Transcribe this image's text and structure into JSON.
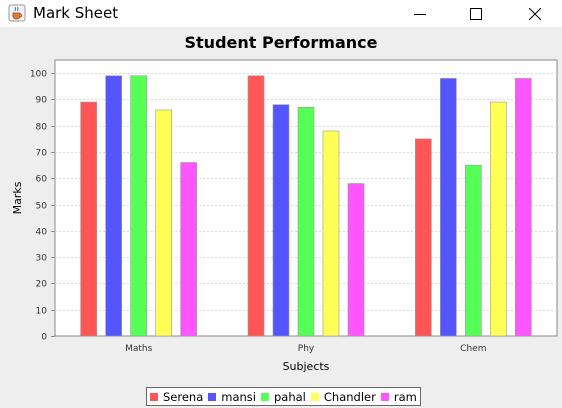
{
  "window": {
    "title": "Mark Sheet",
    "icons": {
      "app": "java-cup-icon",
      "minimize": "minimize-icon",
      "maximize": "maximize-icon",
      "close": "close-icon"
    }
  },
  "chart_data": {
    "type": "bar",
    "title": "Student Performance",
    "xlabel": "Subjects",
    "ylabel": "Marks",
    "categories": [
      "Maths",
      "Phy",
      "Chem"
    ],
    "ylim": [
      0,
      105
    ],
    "yticks": [
      0,
      10,
      20,
      30,
      40,
      50,
      60,
      70,
      80,
      90,
      100
    ],
    "grid": true,
    "legend_position": "bottom",
    "series": [
      {
        "name": "Serena",
        "color": "#ff5555",
        "values": [
          89,
          99,
          75
        ]
      },
      {
        "name": "mansi",
        "color": "#5555ff",
        "values": [
          99,
          88,
          98
        ]
      },
      {
        "name": "pahal",
        "color": "#55ff55",
        "values": [
          99,
          87,
          65
        ]
      },
      {
        "name": "Chandler",
        "color": "#ffff55",
        "values": [
          86,
          78,
          89
        ]
      },
      {
        "name": "ram",
        "color": "#ff55ff",
        "values": [
          66,
          58,
          98
        ]
      }
    ]
  }
}
